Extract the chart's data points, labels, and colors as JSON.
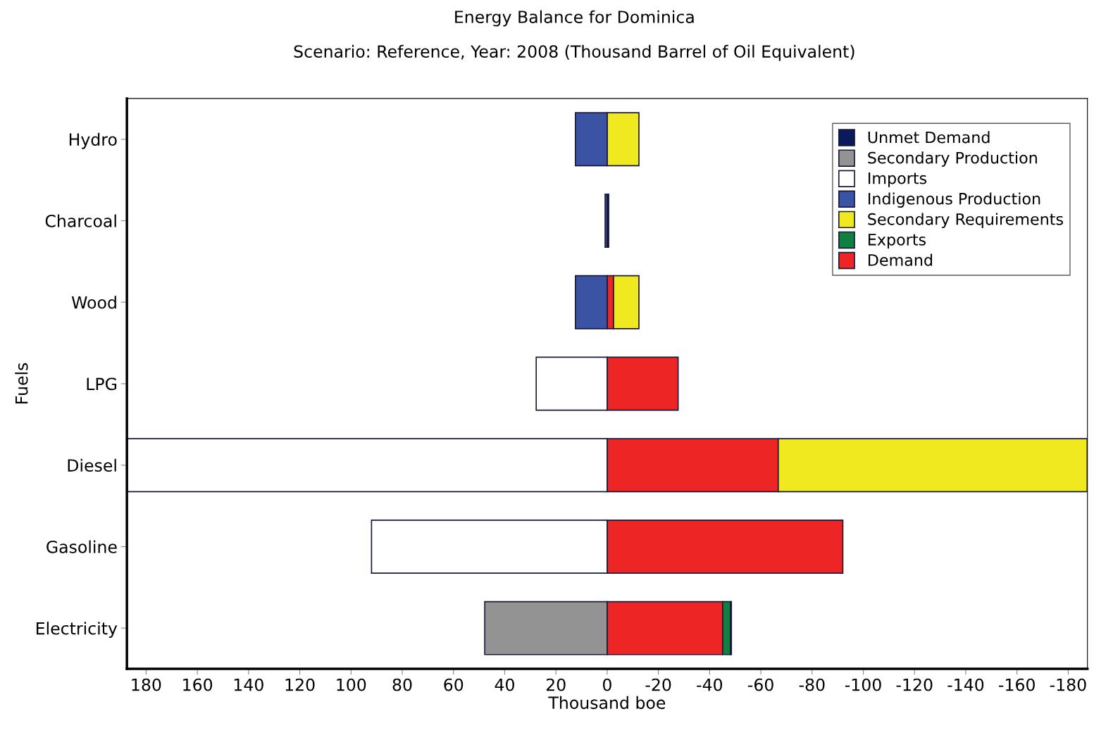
{
  "chart_data": {
    "type": "bar",
    "orientation": "horizontal",
    "stacked": true,
    "title": "Energy Balance for Dominica",
    "subtitle": "Scenario: Reference, Year: 2008 (Thousand Barrel of Oil Equivalent)",
    "xlabel": "Thousand boe",
    "ylabel": "Fuels",
    "categories": [
      "Hydro",
      "Charcoal",
      "Wood",
      "LPG",
      "Diesel",
      "Gasoline",
      "Electricity"
    ],
    "xlim": [
      187.5,
      -187.5
    ],
    "xticks": [
      180,
      160,
      140,
      120,
      100,
      80,
      60,
      40,
      20,
      0,
      -20,
      -40,
      -60,
      -80,
      -100,
      -120,
      -140,
      -160,
      -180
    ],
    "legend": "top right",
    "grid": false,
    "series": [
      {
        "name": "Demand",
        "color": "#ee2525",
        "values": [
          null,
          null,
          -2.5,
          -27.7,
          -66.8,
          -92.0,
          -45.1
        ]
      },
      {
        "name": "Exports",
        "color": "#0f8040",
        "values": [
          null,
          null,
          null,
          null,
          null,
          null,
          -3.0
        ]
      },
      {
        "name": "Secondary Requirements",
        "color": "#f0e91f",
        "values": [
          -12.4,
          null,
          -9.9,
          null,
          -120.6,
          null,
          null
        ]
      },
      {
        "name": "Indigenous Production",
        "color": "#3a53a4",
        "values": [
          12.4,
          0.8,
          12.4,
          null,
          null,
          null,
          null
        ]
      },
      {
        "name": "Imports",
        "color": "#ffffff",
        "values": [
          null,
          null,
          null,
          27.7,
          187.4,
          92.0,
          null
        ]
      },
      {
        "name": "Secondary Production",
        "color": "#939393",
        "values": [
          null,
          null,
          null,
          null,
          null,
          null,
          47.8
        ]
      },
      {
        "name": "Unmet Demand",
        "color": "#0a1a5c",
        "values": [
          null,
          -0.6,
          null,
          null,
          null,
          null,
          -0.4
        ]
      }
    ]
  }
}
